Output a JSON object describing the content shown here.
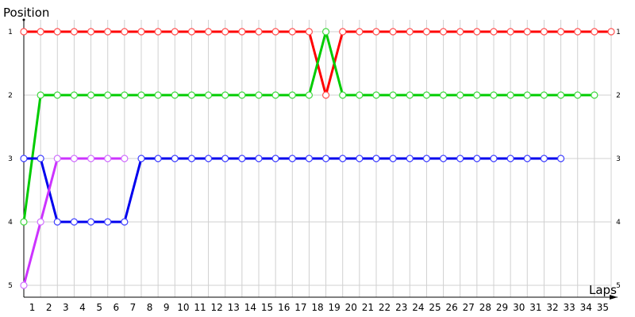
{
  "chart_data": {
    "type": "line",
    "title": "",
    "xlabel": "Laps",
    "ylabel": "Position",
    "xlim": [
      0,
      35
    ],
    "ylim": [
      1,
      5
    ],
    "y_inverted": true,
    "grid": true,
    "x_tick_labels": [
      "1",
      "2",
      "3",
      "4",
      "5",
      "6",
      "7",
      "8",
      "9",
      "10",
      "11",
      "12",
      "13",
      "14",
      "15",
      "16",
      "17",
      "18",
      "19",
      "20",
      "21",
      "22",
      "23",
      "24",
      "25",
      "26",
      "27",
      "28",
      "29",
      "30",
      "31",
      "32",
      "33",
      "34",
      "35"
    ],
    "y_tick_labels": [
      "1",
      "2",
      "3",
      "4",
      "5"
    ],
    "series": [
      {
        "color": "#ff0000",
        "marker_color": "#ff5050",
        "values": [
          1,
          1,
          1,
          1,
          1,
          1,
          1,
          1,
          1,
          1,
          1,
          1,
          1,
          1,
          1,
          1,
          1,
          1,
          2,
          1,
          1,
          1,
          1,
          1,
          1,
          1,
          1,
          1,
          1,
          1,
          1,
          1,
          1,
          1,
          1,
          1
        ]
      },
      {
        "color": "#00cc00",
        "marker_color": "#40d840",
        "values": [
          4,
          2,
          2,
          2,
          2,
          2,
          2,
          2,
          2,
          2,
          2,
          2,
          2,
          2,
          2,
          2,
          2,
          2,
          1,
          2,
          2,
          2,
          2,
          2,
          2,
          2,
          2,
          2,
          2,
          2,
          2,
          2,
          2,
          2,
          2
        ]
      },
      {
        "color": "#0000ee",
        "marker_color": "#4040ff",
        "values": [
          3,
          3,
          4,
          4,
          4,
          4,
          4,
          3,
          3,
          3,
          3,
          3,
          3,
          3,
          3,
          3,
          3,
          3,
          3,
          3,
          3,
          3,
          3,
          3,
          3,
          3,
          3,
          3,
          3,
          3,
          3,
          3,
          3
        ]
      },
      {
        "color": "#cc33ff",
        "marker_color": "#d070ff",
        "values": [
          5,
          4,
          3,
          3,
          3,
          3,
          3
        ]
      }
    ]
  }
}
